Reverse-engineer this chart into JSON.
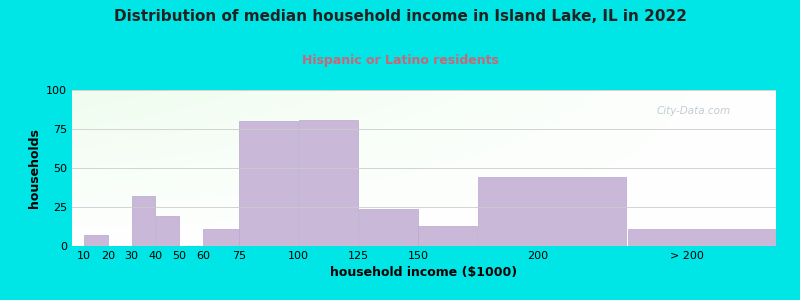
{
  "title": "Distribution of median household income in Island Lake, IL in 2022",
  "subtitle": "Hispanic or Latino residents",
  "xlabel": "household income ($1000)",
  "ylabel": "households",
  "bar_color": "#c9b8d8",
  "bar_edgecolor": "#b8a8cc",
  "background_color": "#00e5e5",
  "watermark": "City-Data.com",
  "ylim": [
    0,
    100
  ],
  "yticks": [
    0,
    25,
    50,
    75,
    100
  ],
  "values": [
    7,
    0,
    32,
    19,
    0,
    11,
    80,
    81,
    24,
    13,
    44,
    11
  ],
  "bar_lefts": [
    10,
    20,
    20,
    30,
    40,
    60,
    62.5,
    87.5,
    100,
    137.5,
    162.5,
    237.5
  ],
  "bar_widths": [
    10,
    10,
    10,
    10,
    10,
    10,
    25,
    25,
    25,
    25,
    62.5,
    62.5
  ],
  "tick_positions": [
    10,
    20,
    30,
    40,
    50,
    60,
    75,
    100,
    125,
    150,
    200,
    262.5
  ],
  "tick_labels": [
    "10",
    "20",
    "30",
    "40",
    "50",
    "60",
    "75",
    "100",
    "125",
    "150",
    "200",
    "> 200"
  ],
  "xlim": [
    5,
    300
  ],
  "subtitle_color": "#cc6677",
  "title_color": "#222222",
  "title_fontsize": 11,
  "subtitle_fontsize": 9,
  "xlabel_fontsize": 9,
  "ylabel_fontsize": 9,
  "tick_fontsize": 8,
  "grid_color": "#cccccc",
  "watermark_color": "#b0bcc8"
}
